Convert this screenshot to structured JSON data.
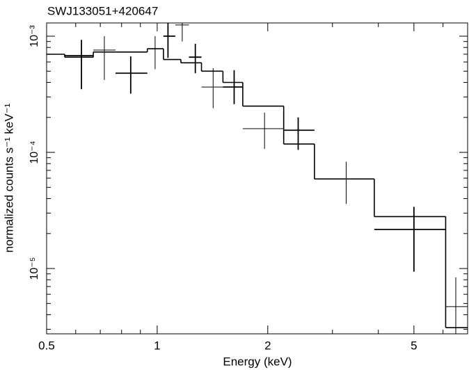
{
  "chart_data": {
    "type": "spectrum",
    "title": "SWJ133051+420647",
    "x_label": "Energy (keV)",
    "y_label": "normalized counts s⁻¹ keV⁻¹",
    "xlog": true,
    "ylog": true,
    "xlim": [
      0.5,
      7.0
    ],
    "ylim": [
      2.74e-06,
      0.0013
    ],
    "xticks": [
      0.5,
      1,
      2,
      5
    ],
    "xminor": [
      0.6,
      0.7,
      0.8,
      0.9,
      3,
      4,
      6,
      7
    ],
    "yticks": [
      {
        "value": 1e-05,
        "label": "10⁻⁵"
      },
      {
        "value": 0.0001,
        "label": "10⁻⁴"
      },
      {
        "value": 0.001,
        "label": "10⁻³"
      }
    ],
    "yminor": [
      3e-06,
      4e-06,
      5e-06,
      6e-06,
      7e-06,
      8e-06,
      9e-06,
      2e-05,
      3e-05,
      4e-05,
      5e-05,
      6e-05,
      7e-05,
      8e-05,
      9e-05,
      0.0002,
      0.0003,
      0.0004,
      0.0005,
      0.0006,
      0.0007,
      0.0008,
      0.0009
    ],
    "data": {
      "color": "#000000",
      "x": [
        0.622,
        0.718,
        0.847,
        0.987,
        1.07,
        1.17,
        1.27,
        1.42,
        1.62,
        1.96,
        2.42,
        3.27,
        5.0,
        6.5
      ],
      "x_low": [
        0.56,
        0.67,
        0.77,
        0.94,
        1.04,
        1.12,
        1.22,
        1.32,
        1.51,
        1.71,
        2.21,
        2.68,
        3.9,
        6.1
      ],
      "x_high": [
        0.67,
        0.77,
        0.94,
        1.04,
        1.12,
        1.22,
        1.32,
        1.51,
        1.71,
        2.21,
        2.68,
        3.9,
        6.1,
        7.0
      ],
      "values": [
        0.00068,
        0.00076,
        0.00048,
        0.00078,
        0.001,
        0.00125,
        0.00066,
        0.000365,
        0.000365,
        0.00016,
        0.000155,
        5.9e-05,
        2.17e-05,
        4.7e-06
      ],
      "y_low": [
        0.00035,
        0.00042,
        0.00032,
        0.00052,
        0.00065,
        0.0009,
        0.00048,
        0.00024,
        0.00026,
        0.000107,
        0.000105,
        3.6e-05,
        9.4e-06,
        2.74e-06
      ],
      "y_high": [
        0.00093,
        0.001,
        0.00067,
        0.001,
        0.0013,
        0.0013,
        0.00086,
        0.00053,
        0.00051,
        0.00022,
        0.0002,
        8.3e-05,
        3.4e-05,
        8.4e-06
      ]
    },
    "model": {
      "color": "#000000",
      "edges": [
        0.5,
        0.56,
        0.67,
        0.77,
        0.94,
        1.04,
        1.16,
        1.32,
        1.51,
        1.71,
        2.21,
        2.68,
        3.9,
        6.1,
        7.0
      ],
      "values": [
        0.000699,
        0.00066,
        0.00073,
        0.00073,
        0.00078,
        0.00063,
        0.00059,
        0.0005,
        0.0004,
        0.00025,
        0.000118,
        5.9e-05,
        2.8e-05,
        3.1e-06
      ]
    }
  }
}
